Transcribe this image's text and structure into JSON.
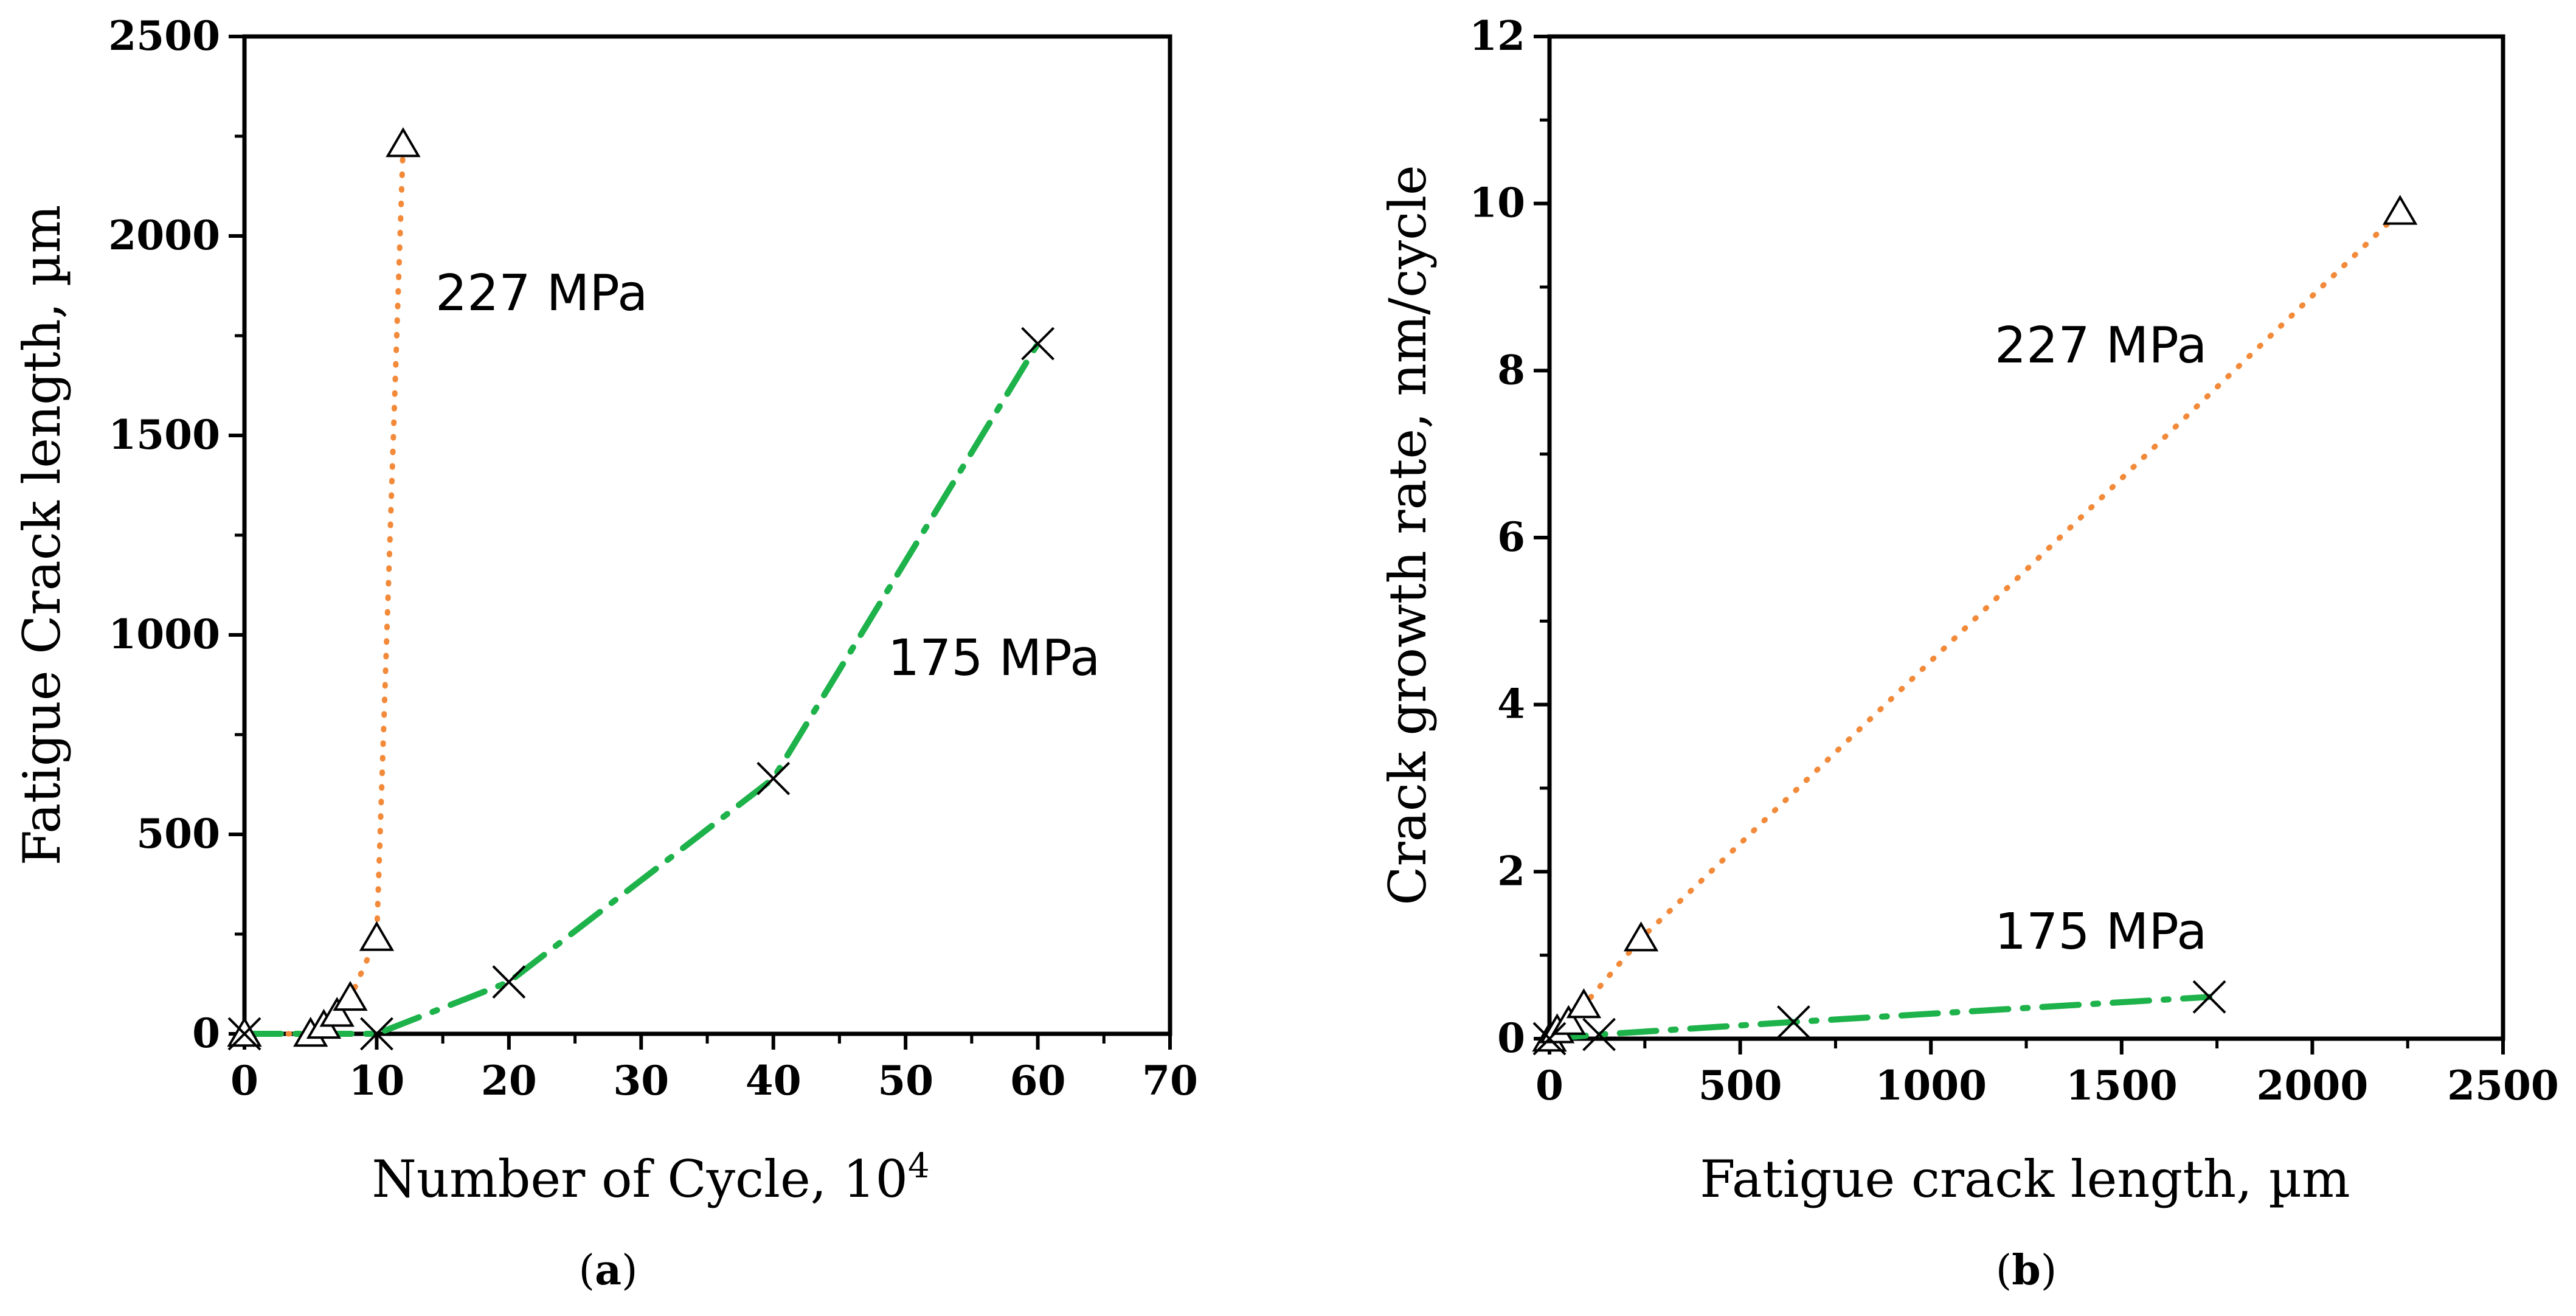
{
  "chart_data": [
    {
      "panel": "a",
      "type": "line",
      "caption": {
        "open": "(",
        "letter": "a",
        "close": ")"
      },
      "xlabel": "Number of Cycle, 10",
      "xlabel_superscript": "4",
      "ylabel": "Fatigue Crack length, µm",
      "xlim": [
        0,
        70
      ],
      "ylim": [
        0,
        2500
      ],
      "xticks": [
        0,
        10,
        20,
        30,
        40,
        50,
        60,
        70
      ],
      "yticks": [
        0,
        500,
        1000,
        1500,
        2000,
        2500
      ],
      "grid": false,
      "series": [
        {
          "name": "227 MPa",
          "label": "227 MPa",
          "marker": "triangle",
          "color": "#f28a3a",
          "line_style": "dotted",
          "x": [
            0,
            5,
            6,
            7,
            8,
            10,
            12
          ],
          "y": [
            0,
            0,
            20,
            50,
            90,
            240,
            2230
          ]
        },
        {
          "name": "175 MPa",
          "label": "175 MPa",
          "marker": "x",
          "color": "#1db24a",
          "line_style": "dashdot",
          "x": [
            0,
            10,
            20,
            40,
            60
          ],
          "y": [
            0,
            0,
            130,
            640,
            1730
          ]
        }
      ]
    },
    {
      "panel": "b",
      "type": "line",
      "caption": {
        "open": "(",
        "letter": "b",
        "close": ")"
      },
      "xlabel": "Fatigue crack length, µm",
      "ylabel": "Crack growth rate, nm/cycle",
      "xlim": [
        0,
        2500
      ],
      "ylim": [
        0,
        12
      ],
      "xticks": [
        0,
        500,
        1000,
        1500,
        2000,
        2500
      ],
      "yticks": [
        0,
        2,
        4,
        6,
        8,
        10,
        12
      ],
      "grid": false,
      "series": [
        {
          "name": "227 MPa",
          "label": "227 MPa",
          "marker": "triangle",
          "color": "#f28a3a",
          "line_style": "dotted",
          "x": [
            0,
            20,
            50,
            90,
            240,
            2230
          ],
          "y": [
            0,
            0.1,
            0.2,
            0.4,
            1.2,
            9.9
          ]
        },
        {
          "name": "175 MPa",
          "label": "175 MPa",
          "marker": "x",
          "color": "#1db24a",
          "line_style": "dashdot",
          "x": [
            0,
            130,
            640,
            1730
          ],
          "y": [
            0,
            0.05,
            0.2,
            0.5
          ]
        }
      ]
    }
  ]
}
